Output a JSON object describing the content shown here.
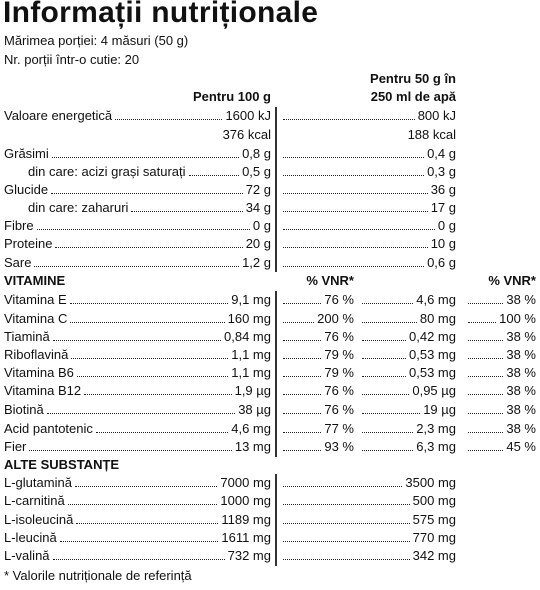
{
  "title": "Informații nutriționale",
  "serving_size": "Mărimea porției: 4 măsuri (50 g)",
  "servings_per_container": "Nr. porții într-o cutie: 20",
  "header": {
    "per100_label": "Pentru 100 g",
    "per50_line1": "Pentru 50 g în",
    "per50_line2": "250 ml de apă"
  },
  "nutrients": [
    {
      "label": "Valoare energetică",
      "per100": "1600 kJ",
      "per50": "800 kJ"
    },
    {
      "label": "",
      "per100": "376 kcal",
      "per50": "188 kcal"
    },
    {
      "label": "Grăsimi",
      "per100": "0,8 g",
      "per50": "0,4 g"
    },
    {
      "label": "din care: acizi grași saturați",
      "per100": "0,5 g",
      "per50": "0,3 g"
    },
    {
      "label": "Glucide",
      "per100": "72 g",
      "per50": "36 g"
    },
    {
      "label": "din care: zaharuri",
      "per100": "34 g",
      "per50": "17 g"
    },
    {
      "label": "Fibre",
      "per100": "0 g",
      "per50": "0 g"
    },
    {
      "label": "Proteine",
      "per100": "20 g",
      "per50": "10 g"
    },
    {
      "label": "Sare",
      "per100": "1,2 g",
      "per50": "0,6 g"
    }
  ],
  "vitamins_heading": "VITAMINE",
  "vnr_label": "% VNR*",
  "vitamins": [
    {
      "label": "Vitamina E",
      "per100": "9,1 mg",
      "vnr100": "76 %",
      "per50": "4,6 mg",
      "vnr50": "38 %"
    },
    {
      "label": "Vitamina C",
      "per100": "160 mg",
      "vnr100": "200 %",
      "per50": "80 mg",
      "vnr50": "100 %"
    },
    {
      "label": "Tiamină",
      "per100": "0,84 mg",
      "vnr100": "76 %",
      "per50": "0,42 mg",
      "vnr50": "38 %"
    },
    {
      "label": "Riboflavină",
      "per100": "1,1 mg",
      "vnr100": "79 %",
      "per50": "0,53 mg",
      "vnr50": "38 %"
    },
    {
      "label": "Vitamina B6",
      "per100": "1,1 mg",
      "vnr100": "79 %",
      "per50": "0,53 mg",
      "vnr50": "38 %"
    },
    {
      "label": "Vitamina B12",
      "per100": "1,9 µg",
      "vnr100": "76 %",
      "per50": "0,95 µg",
      "vnr50": "38 %"
    },
    {
      "label": "Biotină",
      "per100": "38 µg",
      "vnr100": "76 %",
      "per50": "19 µg",
      "vnr50": "38 %"
    },
    {
      "label": "Acid pantotenic",
      "per100": "4,6 mg",
      "vnr100": "77 %",
      "per50": "2,3 mg",
      "vnr50": "38 %"
    },
    {
      "label": "Fier",
      "per100": "13 mg",
      "vnr100": "93 %",
      "per50": "6,3 mg",
      "vnr50": "45 %"
    }
  ],
  "other_heading": "ALTE SUBSTANȚE",
  "other": [
    {
      "label": "L-glutamină",
      "per100": "7000 mg",
      "per50": "3500 mg"
    },
    {
      "label": "L-carnitină",
      "per100": "1000 mg",
      "per50": "500 mg"
    },
    {
      "label": "L-isoleucină",
      "per100": "1189 mg",
      "per50": "575 mg"
    },
    {
      "label": "L-leucină",
      "per100": "1611 mg",
      "per50": "770 mg"
    },
    {
      "label": "L-valină",
      "per100": "732 mg",
      "per50": "342 mg"
    }
  ],
  "footnote": "* Valorile nutriționale de referință"
}
